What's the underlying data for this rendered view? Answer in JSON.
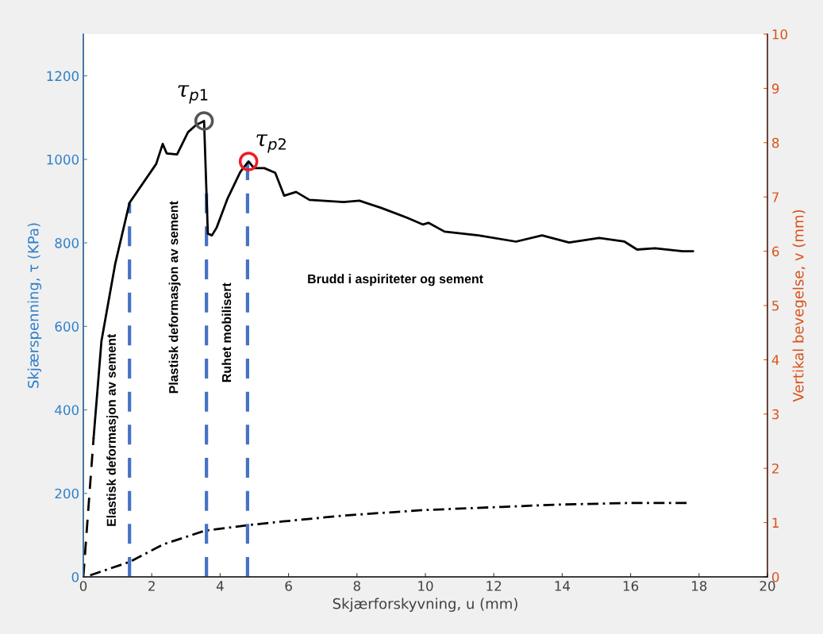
{
  "chart_data": {
    "type": "line",
    "xlabel": "Skjærforskyvning, u (mm)",
    "ylabel": "Skjærspenning, τ (KPa)",
    "y2label": "Vertikal bevegelse, v (mm)",
    "xlim": [
      0,
      20
    ],
    "xticks": [
      0,
      2,
      4,
      6,
      8,
      10,
      12,
      14,
      16,
      18,
      20
    ],
    "ylim": [
      0,
      1300
    ],
    "yticks": [
      0,
      200,
      400,
      600,
      800,
      1000,
      1200
    ],
    "y2lim": [
      0,
      10
    ],
    "y2ticks": [
      0,
      1,
      2,
      3,
      4,
      5,
      6,
      7,
      8,
      9,
      10
    ],
    "series": [
      {
        "color": "#000000",
        "line_style": "dashed",
        "x": [
          0,
          0.3
        ],
        "values": [
          0,
          333
        ]
      },
      {
        "color": "#000000",
        "line_style": "solid",
        "x": [
          0.3,
          0.53,
          0.93,
          1.35,
          2.13,
          2.32,
          2.44,
          2.74,
          3.06,
          3.29,
          3.53,
          3.64,
          3.76,
          3.9,
          4.22,
          4.59,
          4.83,
          4.99,
          5.29,
          5.61,
          5.87,
          6.22,
          6.61,
          7.61,
          8.07,
          8.7,
          9.47,
          9.93,
          10.09,
          10.56,
          11.55,
          12.65,
          13.41,
          14.2,
          15.08,
          15.82,
          16.19,
          16.71,
          17.52,
          17.82
        ],
        "values": [
          333,
          565,
          749,
          896,
          989,
          1037,
          1014,
          1012,
          1065,
          1082,
          1092,
          822,
          818,
          837,
          907,
          970,
          995,
          979,
          979,
          968,
          913,
          922,
          903,
          898,
          901,
          884,
          860,
          844,
          848,
          827,
          818,
          803,
          818,
          801,
          812,
          803,
          784,
          787,
          780,
          780
        ]
      },
      {
        "color": "#000000",
        "line_style": "dashdot",
        "axis": "y2",
        "x": [
          0.2,
          1.37,
          2.34,
          3.55,
          4.78,
          5.82,
          7.61,
          9.93,
          12.25,
          13.8,
          15.87,
          17.68
        ],
        "values": [
          0.03,
          0.28,
          0.6,
          0.85,
          0.95,
          1.02,
          1.13,
          1.23,
          1.29,
          1.33,
          1.36,
          1.36
        ]
      },
      {
        "type": "scatter",
        "marker": "circle",
        "color": "#555555",
        "x": [
          3.53
        ],
        "values": [
          1092
        ]
      },
      {
        "type": "scatter",
        "marker": "circle",
        "color": "#ee1c25",
        "x": [
          4.83
        ],
        "values": [
          995
        ]
      }
    ],
    "ref_lines": [
      {
        "axis": "x",
        "value": 1.35,
        "color": "#4472c4",
        "line_style": "dashed"
      },
      {
        "axis": "x",
        "value": 3.6,
        "color": "#4472c4",
        "line_style": "dashed"
      },
      {
        "axis": "x",
        "value": 4.8,
        "color": "#4472c4",
        "line_style": "dashed"
      }
    ],
    "annotations": [
      {
        "text": "τ$_{p1}$",
        "x": 3.53,
        "y": 1092
      },
      {
        "text": "τ$_{p2}$",
        "x": 4.83,
        "y": 995
      },
      "Elastisk deformasjon av sement",
      "Plastisk deformasjon av sement",
      "Ruhet mobilisert",
      "Brudd i aspiriteter og sement"
    ],
    "grid": false,
    "legend": false
  }
}
